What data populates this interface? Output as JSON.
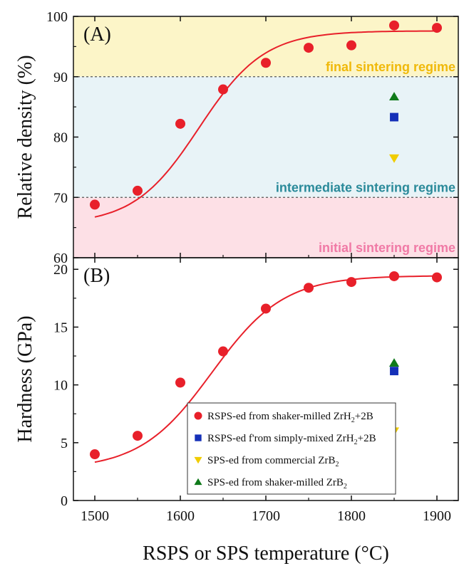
{
  "chart_data": [
    {
      "type": "scatter",
      "panel_label": "(A)",
      "ylabel": "Relative density (%)",
      "ylim": [
        60,
        100
      ],
      "yticks": [
        "60",
        "70",
        "80",
        "90",
        "100"
      ],
      "xlim": [
        1475,
        1925
      ],
      "regimes": [
        {
          "name": "final sintering regime",
          "range": [
            90,
            100
          ],
          "fill": "#fcf5c8",
          "text_color": "#f0b90a"
        },
        {
          "name": "intermediate sintering regime",
          "range": [
            70,
            90
          ],
          "fill": "#e8f3f7",
          "text_color": "#2a8a9a"
        },
        {
          "name": "initial sintering regime",
          "range": [
            60,
            70
          ],
          "fill": "#fde0e6",
          "text_color": "#f07aa6"
        }
      ],
      "series": [
        {
          "marker": "circle",
          "color": "#e8202a",
          "x": [
            1500,
            1550,
            1600,
            1650,
            1700,
            1750,
            1800,
            1850,
            1900
          ],
          "y": [
            68.8,
            71.1,
            82.2,
            87.9,
            92.3,
            94.8,
            95.2,
            98.5,
            98.1
          ]
        },
        {
          "marker": "square",
          "color": "#1530b8",
          "x": [
            1850
          ],
          "y": [
            83.3
          ]
        },
        {
          "marker": "triangle-down",
          "color": "#f0cc00",
          "x": [
            1850
          ],
          "y": [
            76.5
          ]
        },
        {
          "marker": "triangle-up",
          "color": "#0f7a1a",
          "x": [
            1850
          ],
          "y": [
            86.7
          ]
        }
      ],
      "fit": {
        "color": "#e8202a",
        "lower": 65.5,
        "upper": 97.6,
        "mid": 1622,
        "width": 38
      }
    },
    {
      "type": "scatter",
      "panel_label": "(B)",
      "ylabel": "Hardness (GPa)",
      "ylim": [
        0,
        21
      ],
      "yticks": [
        "0",
        "5",
        "10",
        "15",
        "20"
      ],
      "xlim": [
        1475,
        1925
      ],
      "xticks": [
        "1500",
        "1600",
        "1700",
        "1800",
        "1900"
      ],
      "xlabel": "RSPS or SPS temperature (°C)",
      "series": [
        {
          "marker": "circle",
          "color": "#e8202a",
          "x": [
            1500,
            1550,
            1600,
            1650,
            1700,
            1750,
            1800,
            1850,
            1900
          ],
          "y": [
            4.0,
            5.6,
            10.2,
            12.9,
            16.6,
            18.4,
            18.9,
            19.4,
            19.3
          ]
        },
        {
          "marker": "square",
          "color": "#1530b8",
          "x": [
            1850
          ],
          "y": [
            11.2
          ]
        },
        {
          "marker": "triangle-down",
          "color": "#f0cc00",
          "x": [
            1850
          ],
          "y": [
            6.0
          ]
        },
        {
          "marker": "triangle-up",
          "color": "#0f7a1a",
          "x": [
            1850
          ],
          "y": [
            11.9
          ]
        }
      ],
      "fit": {
        "color": "#e8202a",
        "lower": 2.7,
        "upper": 19.45,
        "mid": 1637,
        "width": 42
      },
      "legend": {
        "position": "lower-center",
        "entries": [
          {
            "marker": "circle",
            "color": "#e8202a",
            "text": "RSPS-ed from shaker-milled ZrH",
            "sub": "2",
            "tail": "+2B"
          },
          {
            "marker": "square",
            "color": "#1530b8",
            "text": "RSPS-ed f'rom simply-mixed ZrH",
            "sub": "2",
            "tail": "+2B"
          },
          {
            "marker": "triangle-down",
            "color": "#f0cc00",
            "text": "SPS-ed from commercial ZrB",
            "sub": "2",
            "tail": ""
          },
          {
            "marker": "triangle-up",
            "color": "#0f7a1a",
            "text": "SPS-ed from shaker-milled ZrB",
            "sub": "2",
            "tail": ""
          }
        ]
      }
    }
  ]
}
